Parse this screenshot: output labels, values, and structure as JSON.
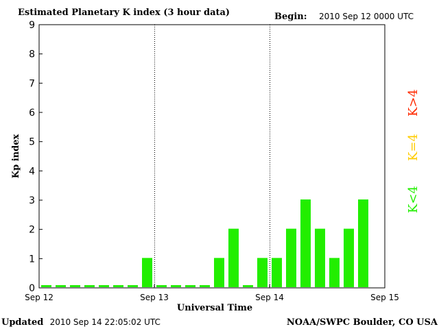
{
  "header": {
    "title": "Estimated Planetary K index (3 hour data)",
    "begin_label": "Begin:",
    "begin_value": "2010 Sep 12 0000 UTC"
  },
  "footer": {
    "updated_label": "Updated",
    "updated_value": "2010 Sep 14 22:05:02 UTC",
    "source": "NOAA/SWPC Boulder, CO USA"
  },
  "legend": {
    "high": {
      "label": "K>4",
      "color": "#ff2a00"
    },
    "equal": {
      "label": "K=4",
      "color": "#ffcc00"
    },
    "low": {
      "label": "K<4",
      "color": "#22ee00"
    }
  },
  "chart_data": {
    "type": "bar",
    "title": "Estimated Planetary K index (3 hour data)",
    "xlabel": "Universal Time",
    "ylabel": "Kp index",
    "ylim": [
      0,
      9
    ],
    "yticks": [
      0,
      1,
      2,
      3,
      4,
      5,
      6,
      7,
      8,
      9
    ],
    "xlim": [
      0,
      24
    ],
    "xticks": [
      {
        "pos": 0,
        "label": "Sep 12"
      },
      {
        "pos": 8,
        "label": "Sep 13"
      },
      {
        "pos": 16,
        "label": "Sep 14"
      },
      {
        "pos": 24,
        "label": "Sep 15"
      }
    ],
    "day_dividers": [
      8,
      16
    ],
    "grid": false,
    "bar_color": "#22ee00",
    "bar_unit": "3-hour interval",
    "values": [
      0,
      0,
      0,
      0,
      0,
      0,
      0,
      1,
      0,
      0,
      0,
      0,
      1,
      2,
      0,
      1,
      1,
      2,
      3,
      2,
      1,
      2,
      3
    ]
  }
}
